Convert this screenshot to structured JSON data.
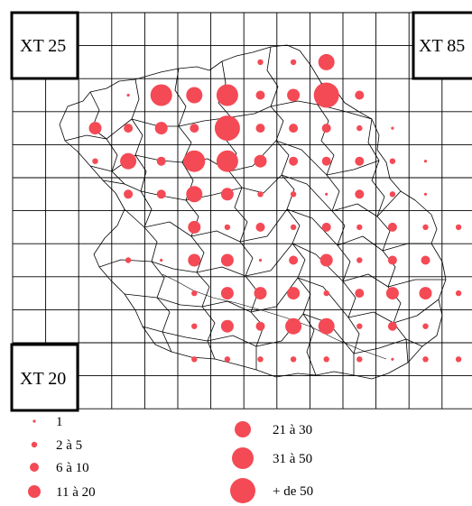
{
  "corner_labels": {
    "top_left": "XT 25",
    "top_right": "XT 85",
    "bottom_left": "XT 20"
  },
  "dot_color": "#f44a55",
  "legend": [
    {
      "label": "1"
    },
    {
      "label": "2 à 5"
    },
    {
      "label": "6 à 10"
    },
    {
      "label": "11 à 20"
    },
    {
      "label": "21 à 30"
    },
    {
      "label": "31 à 50"
    },
    {
      "label": "+ de 50"
    }
  ],
  "dots": [
    {
      "col": 6,
      "row": 0,
      "cls": 1
    },
    {
      "col": 7,
      "row": 0,
      "cls": 1
    },
    {
      "col": 8,
      "row": 0,
      "cls": 4
    },
    {
      "col": 2,
      "row": 1,
      "cls": 0
    },
    {
      "col": 3,
      "row": 1,
      "cls": 5
    },
    {
      "col": 4,
      "row": 1,
      "cls": 4
    },
    {
      "col": 5,
      "row": 1,
      "cls": 5
    },
    {
      "col": 6,
      "row": 1,
      "cls": 2
    },
    {
      "col": 7,
      "row": 1,
      "cls": 3
    },
    {
      "col": 8,
      "row": 1,
      "cls": 6
    },
    {
      "col": 9,
      "row": 1,
      "cls": 2
    },
    {
      "col": 1,
      "row": 2,
      "cls": 3
    },
    {
      "col": 2,
      "row": 2,
      "cls": 2
    },
    {
      "col": 3,
      "row": 2,
      "cls": 3
    },
    {
      "col": 4,
      "row": 2,
      "cls": 2
    },
    {
      "col": 5,
      "row": 2,
      "cls": 6
    },
    {
      "col": 6,
      "row": 2,
      "cls": 2
    },
    {
      "col": 7,
      "row": 2,
      "cls": 2
    },
    {
      "col": 8,
      "row": 2,
      "cls": 2
    },
    {
      "col": 9,
      "row": 2,
      "cls": 1
    },
    {
      "col": 10,
      "row": 2,
      "cls": 0
    },
    {
      "col": 1,
      "row": 3,
      "cls": 1
    },
    {
      "col": 2,
      "row": 3,
      "cls": 4
    },
    {
      "col": 3,
      "row": 3,
      "cls": 2
    },
    {
      "col": 4,
      "row": 3,
      "cls": 5
    },
    {
      "col": 5,
      "row": 3,
      "cls": 5
    },
    {
      "col": 6,
      "row": 3,
      "cls": 3
    },
    {
      "col": 7,
      "row": 3,
      "cls": 2
    },
    {
      "col": 8,
      "row": 3,
      "cls": 2
    },
    {
      "col": 9,
      "row": 3,
      "cls": 2
    },
    {
      "col": 10,
      "row": 3,
      "cls": 1
    },
    {
      "col": 11,
      "row": 3,
      "cls": 0
    },
    {
      "col": 2,
      "row": 4,
      "cls": 2
    },
    {
      "col": 3,
      "row": 4,
      "cls": 2
    },
    {
      "col": 4,
      "row": 4,
      "cls": 4
    },
    {
      "col": 5,
      "row": 4,
      "cls": 3
    },
    {
      "col": 6,
      "row": 4,
      "cls": 1
    },
    {
      "col": 7,
      "row": 4,
      "cls": 1
    },
    {
      "col": 8,
      "row": 4,
      "cls": 0
    },
    {
      "col": 9,
      "row": 4,
      "cls": 2
    },
    {
      "col": 10,
      "row": 4,
      "cls": 1
    },
    {
      "col": 11,
      "row": 4,
      "cls": 0
    },
    {
      "col": 4,
      "row": 5,
      "cls": 3
    },
    {
      "col": 5,
      "row": 5,
      "cls": 1
    },
    {
      "col": 6,
      "row": 5,
      "cls": 2
    },
    {
      "col": 7,
      "row": 5,
      "cls": 1
    },
    {
      "col": 8,
      "row": 5,
      "cls": 2
    },
    {
      "col": 9,
      "row": 5,
      "cls": 1
    },
    {
      "col": 10,
      "row": 5,
      "cls": 2
    },
    {
      "col": 11,
      "row": 5,
      "cls": 1
    },
    {
      "col": 12,
      "row": 5,
      "cls": 1
    },
    {
      "col": 2,
      "row": 6,
      "cls": 1
    },
    {
      "col": 3,
      "row": 6,
      "cls": 0
    },
    {
      "col": 4,
      "row": 6,
      "cls": 3
    },
    {
      "col": 5,
      "row": 6,
      "cls": 3
    },
    {
      "col": 6,
      "row": 6,
      "cls": 0
    },
    {
      "col": 7,
      "row": 6,
      "cls": 2
    },
    {
      "col": 8,
      "row": 6,
      "cls": 3
    },
    {
      "col": 9,
      "row": 6,
      "cls": 1
    },
    {
      "col": 10,
      "row": 6,
      "cls": 2
    },
    {
      "col": 11,
      "row": 6,
      "cls": 2
    },
    {
      "col": 4,
      "row": 7,
      "cls": 1
    },
    {
      "col": 5,
      "row": 7,
      "cls": 3
    },
    {
      "col": 6,
      "row": 7,
      "cls": 3
    },
    {
      "col": 7,
      "row": 7,
      "cls": 3
    },
    {
      "col": 8,
      "row": 7,
      "cls": 1
    },
    {
      "col": 9,
      "row": 7,
      "cls": 2
    },
    {
      "col": 10,
      "row": 7,
      "cls": 3
    },
    {
      "col": 11,
      "row": 7,
      "cls": 3
    },
    {
      "col": 12,
      "row": 7,
      "cls": 1
    },
    {
      "col": 4,
      "row": 8,
      "cls": 1
    },
    {
      "col": 5,
      "row": 8,
      "cls": 3
    },
    {
      "col": 6,
      "row": 8,
      "cls": 2
    },
    {
      "col": 7,
      "row": 8,
      "cls": 4
    },
    {
      "col": 8,
      "row": 8,
      "cls": 4
    },
    {
      "col": 9,
      "row": 8,
      "cls": 1
    },
    {
      "col": 10,
      "row": 8,
      "cls": 2
    },
    {
      "col": 11,
      "row": 8,
      "cls": 1
    },
    {
      "col": 4,
      "row": 9,
      "cls": 1
    },
    {
      "col": 5,
      "row": 9,
      "cls": 1
    },
    {
      "col": 6,
      "row": 9,
      "cls": 1
    },
    {
      "col": 7,
      "row": 9,
      "cls": 1
    },
    {
      "col": 8,
      "row": 9,
      "cls": 1
    },
    {
      "col": 9,
      "row": 9,
      "cls": 1
    },
    {
      "col": 10,
      "row": 9,
      "cls": 0
    },
    {
      "col": 11,
      "row": 9,
      "cls": 1
    },
    {
      "col": 12,
      "row": 9,
      "cls": 1
    }
  ]
}
